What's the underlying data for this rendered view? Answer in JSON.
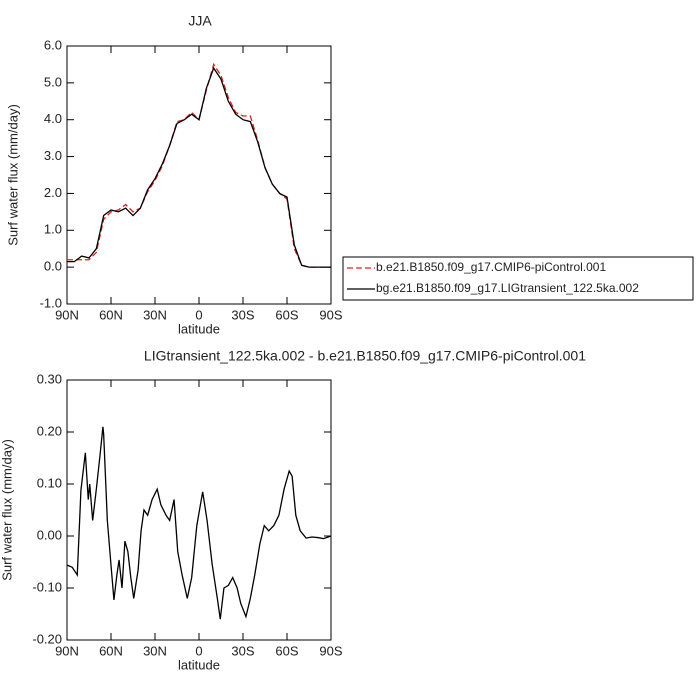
{
  "chart_data": [
    {
      "type": "line",
      "title": "JJA",
      "x": [
        90,
        85,
        80,
        75,
        70,
        65,
        60,
        55,
        50,
        45,
        40,
        35,
        30,
        25,
        20,
        15,
        10,
        5,
        0,
        -5,
        -10,
        -15,
        -20,
        -25,
        -30,
        -35,
        -40,
        -45,
        -50,
        -55,
        -60,
        -65,
        -70,
        -75,
        -80,
        -85,
        -90
      ],
      "series": [
        {
          "name": "b.e21.B1850.f09_g17.CMIP6-piControl.001",
          "color": "#e0201b",
          "dash": true,
          "values": [
            0.2,
            0.2,
            0.2,
            0.2,
            0.4,
            1.3,
            1.5,
            1.55,
            1.7,
            1.5,
            1.6,
            2.05,
            2.35,
            2.75,
            3.3,
            3.95,
            4.0,
            4.2,
            4.0,
            4.8,
            5.5,
            5.2,
            4.6,
            4.2,
            4.1,
            4.1,
            3.45,
            2.7,
            2.25,
            2.0,
            1.85,
            0.5,
            0.05,
            0.0,
            0.0,
            0.0,
            0.0
          ]
        },
        {
          "name": "bg.e21.B1850.f09_g17.LIGtransient_122.5ka.002",
          "color": "#000000",
          "dash": false,
          "values": [
            0.15,
            0.15,
            0.3,
            0.25,
            0.5,
            1.4,
            1.55,
            1.5,
            1.6,
            1.4,
            1.6,
            2.1,
            2.4,
            2.8,
            3.3,
            3.9,
            4.0,
            4.15,
            4.0,
            4.85,
            5.4,
            5.1,
            4.5,
            4.15,
            4.0,
            3.95,
            3.4,
            2.7,
            2.25,
            2.0,
            1.9,
            0.6,
            0.05,
            0.0,
            0.0,
            0.0,
            0.0
          ]
        }
      ],
      "xlabel": "latitude",
      "ylabel": "Surf water flux (mm/day)",
      "xlim": [
        90,
        -90
      ],
      "xticks": [
        {
          "value": 90,
          "label": "90N"
        },
        {
          "value": 60,
          "label": "60N"
        },
        {
          "value": 30,
          "label": "30N"
        },
        0,
        {
          "value": -30,
          "label": "30S"
        },
        {
          "value": -60,
          "label": "60S"
        },
        {
          "value": -90,
          "label": "90S"
        }
      ],
      "ylim": [
        -1,
        6
      ],
      "yticks": [
        {
          "value": 6,
          "label": "6.0"
        },
        {
          "value": 5,
          "label": "5.0"
        },
        {
          "value": 4,
          "label": "4.0"
        },
        {
          "value": 3,
          "label": "3.0"
        },
        {
          "value": 2,
          "label": "2.0"
        },
        {
          "value": 1,
          "label": "1.0"
        },
        {
          "value": 0,
          "label": "0.0"
        },
        {
          "value": -1,
          "label": "-1.0"
        }
      ],
      "legend": "right"
    },
    {
      "type": "line",
      "title": "LIGtransient_122.5ka.002 - b.e21.B1850.f09_g17.CMIP6-piControl.001",
      "x": [
        90,
        86.5,
        83,
        80.5,
        77.5,
        75.5,
        74.5,
        72.5,
        70,
        67.5,
        65.5,
        65,
        62.5,
        60,
        58,
        56,
        54.5,
        52.5,
        50.5,
        48.5,
        46.5,
        44.5,
        41.5,
        39.5,
        37.5,
        35,
        32,
        28.5,
        26,
        22.5,
        20,
        17,
        14.5,
        11.5,
        8,
        5,
        1.5,
        -2.5,
        -5.5,
        -9,
        -12.5,
        -14.5,
        -17,
        -20,
        -23,
        -26,
        -28.5,
        -32,
        -35,
        -38,
        -41.5,
        -44.5,
        -47.5,
        -51,
        -54.5,
        -58,
        -61.5,
        -63.5,
        -66,
        -69,
        -73,
        -77,
        -81,
        -85,
        -90
      ],
      "values": [
        -0.056,
        -0.06,
        -0.075,
        0.088,
        0.16,
        0.07,
        0.1,
        0.03,
        0.09,
        0.155,
        0.21,
        0.195,
        0.03,
        -0.056,
        -0.123,
        -0.075,
        -0.046,
        -0.1,
        -0.01,
        -0.03,
        -0.08,
        -0.12,
        -0.065,
        0.01,
        0.05,
        0.04,
        0.07,
        0.09,
        0.06,
        0.04,
        0.03,
        0.07,
        -0.03,
        -0.075,
        -0.12,
        -0.08,
        0.02,
        0.085,
        0.03,
        -0.055,
        -0.12,
        -0.16,
        -0.1,
        -0.095,
        -0.08,
        -0.1,
        -0.13,
        -0.155,
        -0.12,
        -0.075,
        -0.015,
        0.02,
        0.01,
        0.02,
        0.04,
        0.09,
        0.125,
        0.115,
        0.04,
        0.01,
        -0.004,
        -0.002,
        -0.003,
        -0.005,
        0
      ],
      "color": "#000000",
      "xlabel": "latitude",
      "ylabel": "Surf water flux (mm/day)",
      "xlim": [
        90,
        -90
      ],
      "xticks": [
        {
          "value": 90,
          "label": "90N"
        },
        {
          "value": 60,
          "label": "60N"
        },
        {
          "value": 30,
          "label": "30N"
        },
        0,
        {
          "value": -30,
          "label": "30S"
        },
        {
          "value": -60,
          "label": "60S"
        },
        {
          "value": -90,
          "label": "90S"
        }
      ],
      "ylim": [
        -0.2,
        0.3
      ],
      "yticks": [
        {
          "value": 0.3,
          "label": "0.30"
        },
        {
          "value": 0.2,
          "label": "0.20"
        },
        {
          "value": 0.1,
          "label": "0.10"
        },
        {
          "value": 0,
          "label": "0.00"
        },
        {
          "value": -0.1,
          "label": "-0.10"
        },
        {
          "value": -0.2,
          "label": "-0.20"
        }
      ]
    }
  ]
}
